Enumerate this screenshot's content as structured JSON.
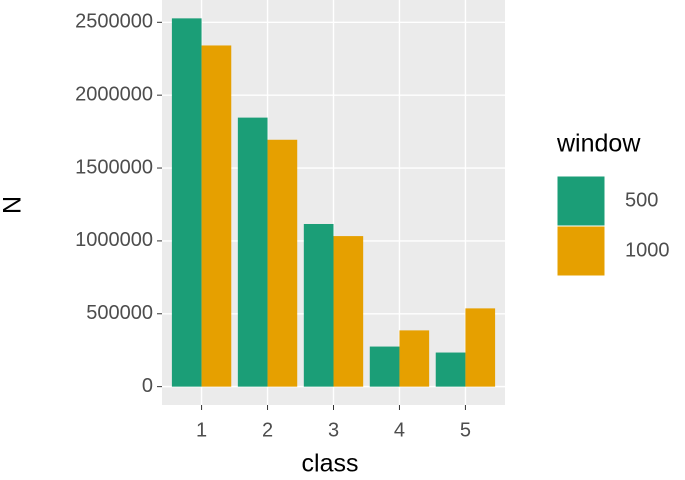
{
  "chart_data": {
    "type": "bar",
    "x_label": "class",
    "y_label": "N",
    "legend_title": "window",
    "categories": [
      "1",
      "2",
      "3",
      "4",
      "5"
    ],
    "series": [
      {
        "name": "500",
        "color": "#1b9e77",
        "values": [
          2527000,
          1846000,
          1116000,
          275000,
          234000
        ]
      },
      {
        "name": "1000",
        "color": "#e6a000",
        "values": [
          2341000,
          1694000,
          1033000,
          386000,
          537000
        ]
      }
    ],
    "ylim": [
      -126000,
      2653000
    ],
    "yticks": [
      0,
      500000,
      1000000,
      1500000,
      2000000,
      2500000
    ],
    "grid": true,
    "legend": "right"
  }
}
